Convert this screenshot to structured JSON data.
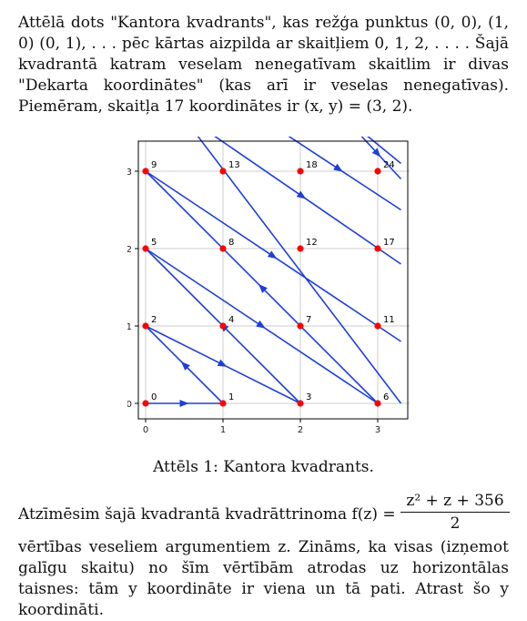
{
  "intro": {
    "text": "Attēlā dots \"Kantora kvadrants\", kas režģa punktus (0, 0), (1, 0) (0, 1), . . . pēc kārtas aizpilda ar skaitļiem 0, 1, 2, . . . . Šajā kvadrantā katram veselam nenegatīvam skaitlim ir divas \"Dekarta koordinātes\" (kas arī ir veselas nenegatīvas). Piemēram, skaitļa 17 koordinātes ir (x, y) = (3, 2)."
  },
  "figure": {
    "caption": "Attēls 1:   Kantora kvadrants.",
    "x_ticks": [
      "0",
      "1",
      "2",
      "3"
    ],
    "y_ticks": [
      "0",
      "1",
      "2",
      "3"
    ],
    "points": [
      {
        "label": "0",
        "x": 0,
        "y": 0
      },
      {
        "label": "1",
        "x": 1,
        "y": 0
      },
      {
        "label": "2",
        "x": 0,
        "y": 1
      },
      {
        "label": "3",
        "x": 2,
        "y": 0
      },
      {
        "label": "4",
        "x": 1,
        "y": 1
      },
      {
        "label": "5",
        "x": 0,
        "y": 2
      },
      {
        "label": "6",
        "x": 3,
        "y": 0
      },
      {
        "label": "7",
        "x": 2,
        "y": 1
      },
      {
        "label": "8",
        "x": 1,
        "y": 2
      },
      {
        "label": "9",
        "x": 0,
        "y": 3
      },
      {
        "label": "11",
        "x": 3,
        "y": 1
      },
      {
        "label": "12",
        "x": 2,
        "y": 2
      },
      {
        "label": "13",
        "x": 1,
        "y": 3
      },
      {
        "label": "17",
        "x": 3,
        "y": 2
      },
      {
        "label": "18",
        "x": 2,
        "y": 3
      },
      {
        "label": "24",
        "x": 3,
        "y": 3
      }
    ],
    "colors": {
      "point": "#ff0000",
      "path": "#1f3fd8",
      "grid": "#cccccc"
    }
  },
  "problem": {
    "line1": "Atzīmēsim šajā kvadrantā kvadrāttrinoma f(z) =",
    "numerator": "z² + z + 356",
    "denominator": "2",
    "rest": "vērtības veseliem argumentiem z. Zināms, ka visas (izņemot galīgu skaitu) no šīm vērtībām atrodas uz horizontālas taisnes: tām y koordināte ir viena un tā pati. Atrast šo y koordināti."
  }
}
